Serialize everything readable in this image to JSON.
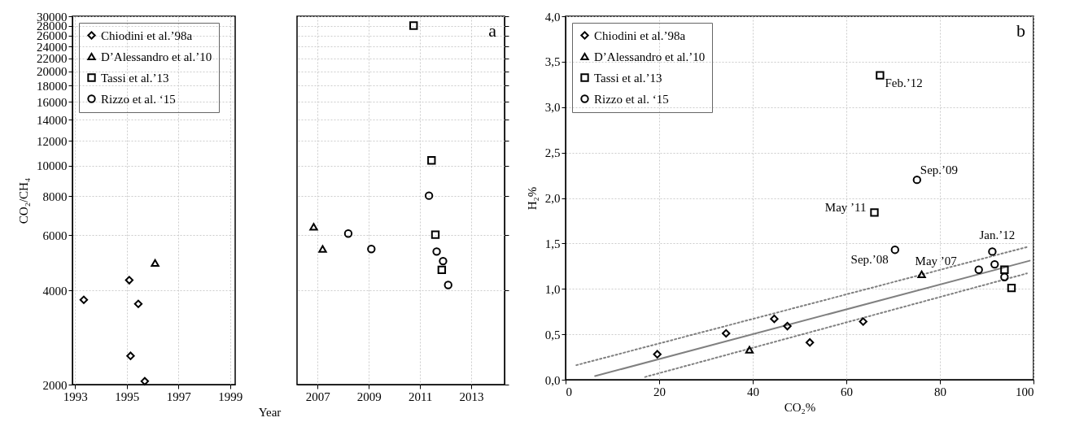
{
  "chart_data": [
    {
      "type": "scatter",
      "xlabel": "Year",
      "ylabel": "CO₂/CH₄",
      "xlim": [
        1992.9,
        1999.2
      ],
      "xticks": [
        1993,
        1995,
        1997,
        1999
      ],
      "ylim": [
        2000,
        30000
      ],
      "yticks": [
        2000,
        4000,
        6000,
        8000,
        10000,
        12000,
        14000,
        16000,
        18000,
        20000,
        22000,
        24000,
        26000,
        28000,
        30000
      ],
      "log": "y",
      "grid": true,
      "legend": "top left",
      "series": [
        {
          "name": "Chiodini et al.’98a",
          "color": "#000000",
          "marker": "diamond",
          "x": [
            1993.34,
            1995.1,
            1995.45,
            1995.15,
            1995.7
          ],
          "values": [
            3730,
            4310,
            3620,
            2470,
            2050
          ]
        },
        {
          "name": "D’Alessandro et al.’10",
          "color": "#000000",
          "marker": "triangle",
          "x": [
            1996.1
          ],
          "values": [
            4890
          ]
        },
        {
          "name": "Tassi et al.’13",
          "color": "#000000",
          "marker": "square"
        },
        {
          "name": "Rizzo et al. ‘15",
          "color": "#000000",
          "marker": "circle"
        }
      ]
    },
    {
      "type": "scatter",
      "xlim": [
        2006.2,
        2014.3
      ],
      "xticks": [
        2007,
        2009,
        2011,
        2013
      ],
      "ylim": [
        2000,
        30000
      ],
      "yticks": [
        2000,
        4000,
        6000,
        8000,
        10000,
        12000,
        14000,
        16000,
        18000,
        20000,
        22000,
        24000,
        26000,
        28000,
        30000
      ],
      "log": "y",
      "grid": true,
      "tick_labels": "x",
      "annotations": [
        "a"
      ],
      "series": [
        {
          "color": "#000000",
          "marker": "triangle",
          "x": [
            2006.85,
            2007.2
          ],
          "values": [
            6380,
            5420
          ]
        },
        {
          "color": "#000000",
          "marker": "square",
          "x": [
            2010.75,
            2011.45,
            2011.6,
            2011.85
          ],
          "values": [
            28000,
            10400,
            6020,
            4650
          ]
        },
        {
          "color": "#000000",
          "marker": "circle",
          "x": [
            2008.2,
            2009.1,
            2011.35,
            2011.65,
            2011.9,
            2012.1
          ],
          "values": [
            6070,
            5420,
            8020,
            5320,
            4960,
            4160
          ]
        }
      ]
    },
    {
      "type": "scatter",
      "xlabel": "CO₂%",
      "ylabel": "H₂%",
      "xlim": [
        0,
        100
      ],
      "xticks": [
        0,
        20,
        40,
        60,
        80,
        100
      ],
      "ylim": [
        0,
        4
      ],
      "yticks": [
        {
          "value": 0,
          "label": "0,0"
        },
        {
          "value": 0.5,
          "label": "0,5"
        },
        {
          "value": 1,
          "label": "1,0"
        },
        {
          "value": 1.5,
          "label": "1,5"
        },
        {
          "value": 2,
          "label": "2,0"
        },
        {
          "value": 2.5,
          "label": "2,5"
        },
        {
          "value": 3,
          "label": "3,0"
        },
        {
          "value": 3.5,
          "label": "3,5"
        },
        {
          "value": 4,
          "label": "4,0"
        }
      ],
      "grid": true,
      "legend": "top left",
      "annotations": [
        "b",
        {
          "text": "Feb.’12",
          "x": 67.2,
          "y": 3.35
        },
        {
          "text": "Sep.’09",
          "x": 75.1,
          "y": 2.2
        },
        {
          "text": "May ’11",
          "x": 66.0,
          "y": 1.84
        },
        {
          "text": "Sep.’08",
          "x": 70.4,
          "y": 1.43
        },
        {
          "text": "May ’07",
          "x": 76.1,
          "y": 1.16
        },
        {
          "text": "Jan.’12",
          "x": 91.2,
          "y": 1.41
        }
      ],
      "series": [
        {
          "type": "line",
          "color": "#808080",
          "line_style": "solid",
          "x": [
            6.3,
            99.2
          ],
          "values": [
            0.04,
            1.31
          ]
        },
        {
          "type": "line",
          "color": "#808080",
          "line_style": "dotted",
          "x": [
            2.3,
            98.6
          ],
          "values": [
            0.16,
            1.46
          ]
        },
        {
          "type": "line",
          "color": "#808080",
          "line_style": "dotted",
          "x": [
            17.0,
            98.6
          ],
          "values": [
            0.03,
            1.17
          ]
        },
        {
          "name": "Chiodini et al.’98a",
          "color": "#000000",
          "marker": "diamond",
          "x": [
            19.6,
            34.3,
            44.6,
            47.4,
            52.2,
            63.6
          ],
          "values": [
            0.28,
            0.51,
            0.67,
            0.59,
            0.41,
            0.64
          ]
        },
        {
          "name": "D’Alessandro et al.’10",
          "color": "#000000",
          "marker": "triangle",
          "x": [
            39.3,
            76.1
          ],
          "values": [
            0.33,
            1.16
          ]
        },
        {
          "name": "Tassi et al.’13",
          "color": "#000000",
          "marker": "square",
          "x": [
            67.2,
            66.0,
            93.8,
            95.3
          ],
          "values": [
            3.35,
            1.84,
            1.21,
            1.01
          ]
        },
        {
          "name": "Rizzo et al. ‘15",
          "color": "#000000",
          "marker": "circle",
          "x": [
            75.1,
            70.4,
            88.3,
            91.2,
            91.7,
            93.8
          ],
          "values": [
            2.2,
            1.43,
            1.21,
            1.41,
            1.27,
            1.13
          ]
        }
      ]
    }
  ]
}
